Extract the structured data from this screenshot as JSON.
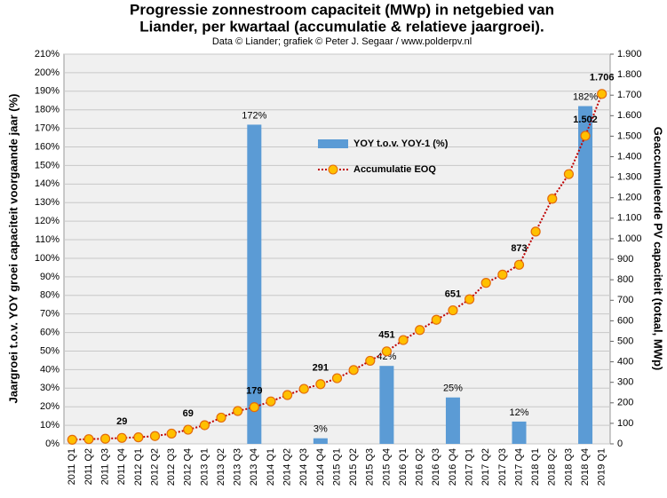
{
  "chart_data": {
    "type": "bar-line",
    "title": [
      "Progressie zonnestroom capaciteit (MWp) in netgebied van",
      "Liander, per kwartaal (accumulatie & relatieve jaargroei)."
    ],
    "subtitle": "Data © Liander; grafiek © Peter J. Segaar / www.polderpv.nl",
    "ylabel": "Jaargroei t.o.v. YOY groei capaciteit voorgaande jaar (%)",
    "y2label": "Geaccumuleerde PV capaciteit (totaal, MWp)",
    "categories": [
      "2011 Q1",
      "2011 Q2",
      "2011 Q3",
      "2011 Q4",
      "2012 Q1",
      "2012 Q2",
      "2012 Q3",
      "2012 Q4",
      "2013 Q1",
      "2013 Q2",
      "2013 Q3",
      "2013 Q4",
      "2014 Q1",
      "2014 Q2",
      "2014 Q3",
      "2014 Q4",
      "2015 Q1",
      "2015 Q2",
      "2015 Q3",
      "2015 Q4",
      "2016 Q1",
      "2016 Q2",
      "2016 Q3",
      "2016 Q4",
      "2017 Q1",
      "2017 Q2",
      "2017 Q3",
      "2017 Q4",
      "2018 Q1",
      "2018 Q2",
      "2018 Q3",
      "2018 Q4",
      "2019 Q1"
    ],
    "series": [
      {
        "name": "YOY t.o.v. YOY-1 (%)",
        "type": "bar",
        "axis": "y",
        "color": "#5b9bd5",
        "values": [
          null,
          null,
          null,
          null,
          null,
          null,
          null,
          null,
          null,
          null,
          null,
          172,
          null,
          null,
          null,
          3,
          null,
          null,
          null,
          42,
          null,
          null,
          null,
          25,
          null,
          null,
          null,
          12,
          null,
          null,
          null,
          182,
          null
        ],
        "value_labels": [
          null,
          null,
          null,
          null,
          null,
          null,
          null,
          null,
          null,
          null,
          null,
          "172%",
          null,
          null,
          null,
          "3%",
          null,
          null,
          null,
          "42%",
          null,
          null,
          null,
          "25%",
          null,
          null,
          null,
          "12%",
          null,
          null,
          null,
          "182%",
          null
        ]
      },
      {
        "name": "Accumulatie EOQ",
        "type": "line",
        "axis": "y2",
        "color": "#c00000",
        "marker_color": "#ffc000",
        "values": [
          20,
          23,
          25,
          29,
          32,
          38,
          50,
          69,
          91,
          128,
          160,
          179,
          207,
          238,
          268,
          291,
          320,
          360,
          405,
          451,
          506,
          555,
          605,
          651,
          705,
          785,
          825,
          873,
          1035,
          1195,
          1315,
          1502,
          1706
        ],
        "value_labels": [
          null,
          null,
          null,
          "29",
          null,
          null,
          null,
          "69",
          null,
          null,
          null,
          "179",
          null,
          null,
          null,
          "291",
          null,
          null,
          null,
          "451",
          null,
          null,
          null,
          "651",
          null,
          null,
          null,
          "873",
          null,
          null,
          null,
          "1.502",
          "1.706"
        ]
      }
    ],
    "ylim": [
      0,
      210
    ],
    "yticks": [
      {
        "value": 0,
        "label": "0%"
      },
      {
        "value": 10,
        "label": "10%"
      },
      {
        "value": 20,
        "label": "20%"
      },
      {
        "value": 30,
        "label": "30%"
      },
      {
        "value": 40,
        "label": "40%"
      },
      {
        "value": 50,
        "label": "50%"
      },
      {
        "value": 60,
        "label": "60%"
      },
      {
        "value": 70,
        "label": "70%"
      },
      {
        "value": 80,
        "label": "80%"
      },
      {
        "value": 90,
        "label": "90%"
      },
      {
        "value": 100,
        "label": "100%"
      },
      {
        "value": 110,
        "label": "110%"
      },
      {
        "value": 120,
        "label": "120%"
      },
      {
        "value": 130,
        "label": "130%"
      },
      {
        "value": 140,
        "label": "140%"
      },
      {
        "value": 150,
        "label": "150%"
      },
      {
        "value": 160,
        "label": "160%"
      },
      {
        "value": 170,
        "label": "170%"
      },
      {
        "value": 180,
        "label": "180%"
      },
      {
        "value": 190,
        "label": "190%"
      },
      {
        "value": 200,
        "label": "200%"
      },
      {
        "value": 210,
        "label": "210%"
      }
    ],
    "y2lim": [
      0,
      1900
    ],
    "y2ticks": [
      0,
      100,
      200,
      300,
      400,
      500,
      600,
      700,
      800,
      900,
      {
        "value": 1000,
        "label": "1.000"
      },
      {
        "value": 1100,
        "label": "1.100"
      },
      {
        "value": 1200,
        "label": "1.200"
      },
      {
        "value": 1300,
        "label": "1.300"
      },
      {
        "value": 1400,
        "label": "1.400"
      },
      {
        "value": 1500,
        "label": "1.500"
      },
      {
        "value": 1600,
        "label": "1.600"
      },
      {
        "value": 1700,
        "label": "1.700"
      },
      {
        "value": 1800,
        "label": "1.800"
      },
      {
        "value": 1900,
        "label": "1.900"
      }
    ],
    "grid": true
  }
}
